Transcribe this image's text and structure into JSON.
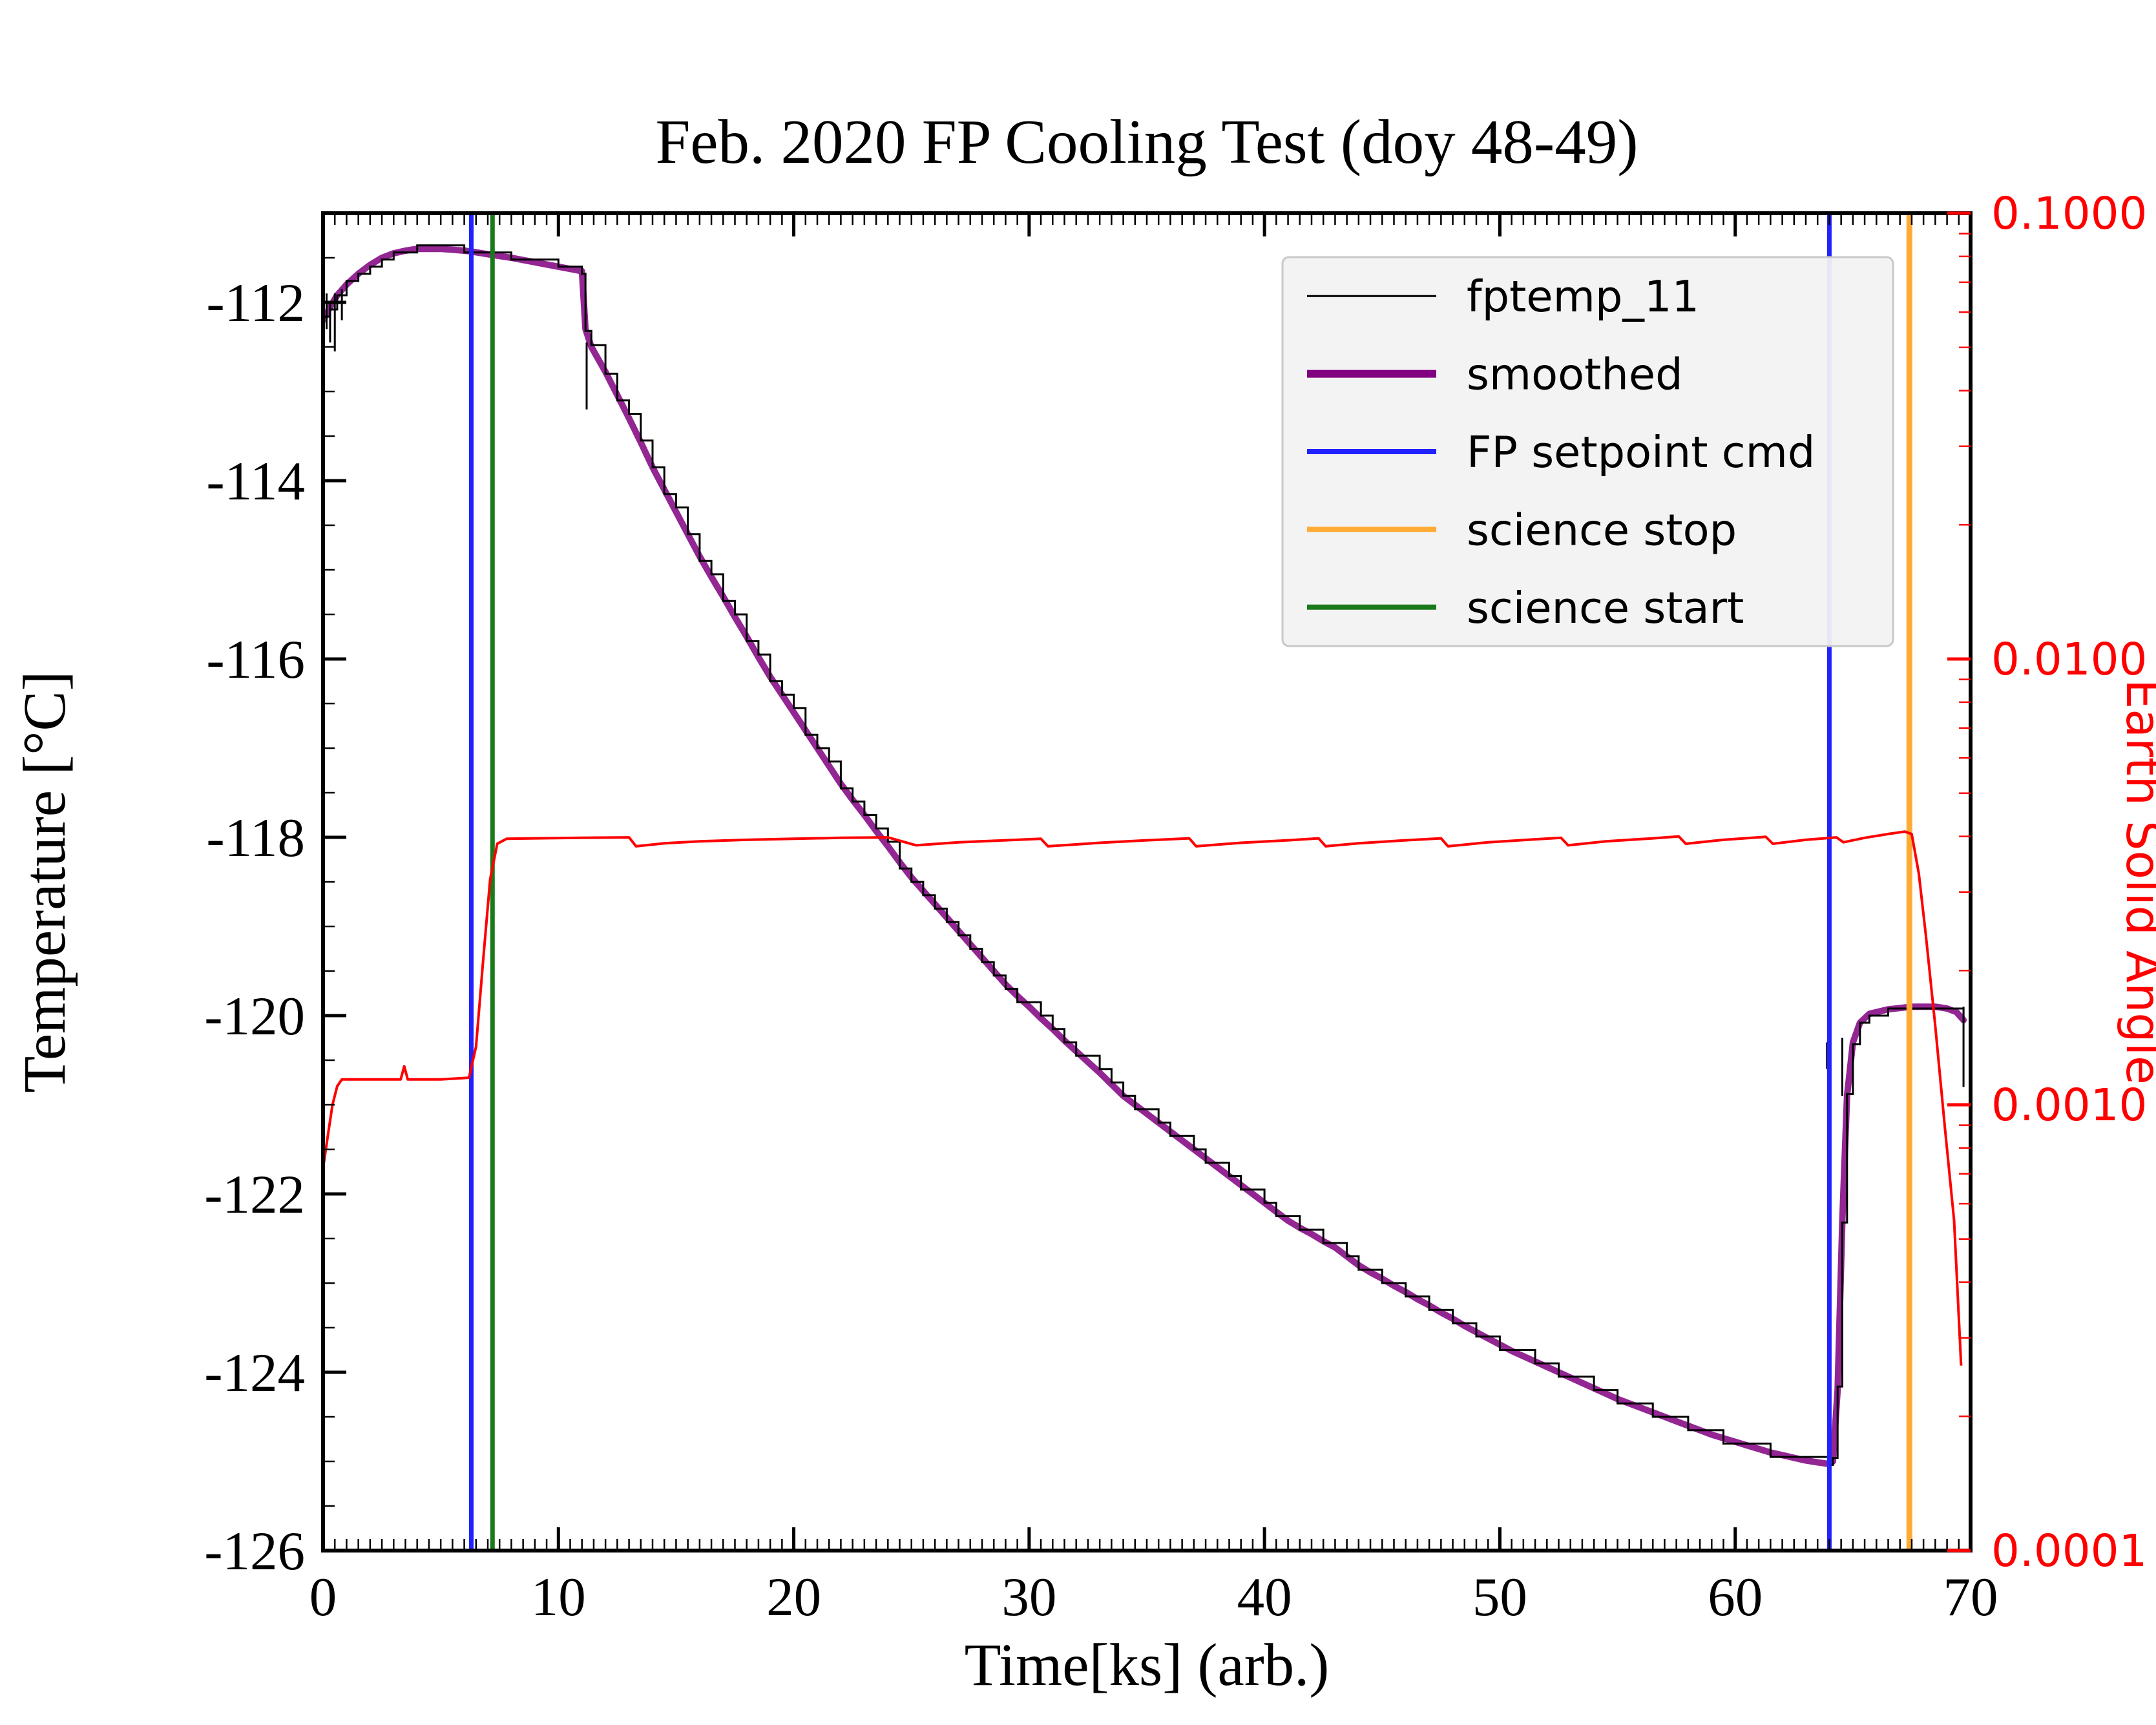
{
  "figure": {
    "background": "#ffffff"
  },
  "chart_data": {
    "type": "line",
    "title": "Feb. 2020 FP Cooling Test (doy 48-49)",
    "xlabel": "Time[ks] (arb.)",
    "ylabel_left": "Temperature [°C]",
    "ylabel_right": "Earth Solid Angle",
    "xlim": [
      0,
      70
    ],
    "ylim_left": [
      -126,
      -111
    ],
    "ylim_right": [
      0.0001,
      0.1
    ],
    "right_axis_scale": "log",
    "grid": false,
    "x_major_ticks": [
      0,
      10,
      20,
      30,
      40,
      50,
      60,
      70
    ],
    "x_minor_step": 0.5,
    "y_left_major_ticks": [
      -126,
      -124,
      -122,
      -120,
      -118,
      -116,
      -114,
      -112
    ],
    "y_left_minor_step": 0.5,
    "y_right_tick_values": [
      0.1,
      0.01,
      0.001,
      0.0001
    ],
    "y_right_tick_labels": [
      "0.1000",
      "0.0100",
      "0.0010",
      "0.0001"
    ],
    "colors": {
      "fptemp": "#000000",
      "smoothed": "#800080",
      "setpoint_blue": "#2222ff",
      "science_stop_orange": "#ffaa33",
      "science_start_green": "#1a7a1a",
      "solid_angle_red": "#ff0000",
      "legend_bg": "#f2f2f2",
      "legend_border": "#c8c8c8"
    },
    "legend": {
      "position": "upper right",
      "bg": "#f2f2f2",
      "border": "#c8c8c8",
      "entries": [
        {
          "label": "fptemp_11",
          "color": "#000000",
          "line_width": 3
        },
        {
          "label": "smoothed",
          "color": "#800080",
          "line_width": 12
        },
        {
          "label": "FP setpoint cmd",
          "color": "#2222ff",
          "line_width": 8
        },
        {
          "label": "science stop",
          "color": "#ffaa33",
          "line_width": 8
        },
        {
          "label": "science start",
          "color": "#1a7a1a",
          "line_width": 8
        }
      ]
    },
    "vlines": [
      {
        "name": "FP setpoint cmd",
        "color": "#2222ff",
        "width": 7,
        "x": [
          6.3,
          64.0
        ]
      },
      {
        "name": "science start",
        "color": "#1a7a1a",
        "width": 7,
        "x": [
          7.2
        ]
      },
      {
        "name": "science stop",
        "color": "#ffaa33",
        "width": 9,
        "x": [
          67.4
        ]
      }
    ],
    "series": [
      {
        "name": "smoothed",
        "axis": "left",
        "color": "#800080",
        "width": 10,
        "opacity": 0.85,
        "points": [
          [
            0,
            -112.2
          ],
          [
            0.3,
            -112.05
          ],
          [
            0.6,
            -111.92
          ],
          [
            1,
            -111.8
          ],
          [
            1.5,
            -111.68
          ],
          [
            2,
            -111.58
          ],
          [
            2.5,
            -111.5
          ],
          [
            3,
            -111.45
          ],
          [
            3.5,
            -111.42
          ],
          [
            4,
            -111.4
          ],
          [
            5,
            -111.4
          ],
          [
            6,
            -111.42
          ],
          [
            6.3,
            -111.43
          ],
          [
            7,
            -111.46
          ],
          [
            8,
            -111.5
          ],
          [
            9,
            -111.55
          ],
          [
            10,
            -111.6
          ],
          [
            11,
            -111.65
          ],
          [
            11.15,
            -112.3
          ],
          [
            11.4,
            -112.5
          ],
          [
            12,
            -112.78
          ],
          [
            12.5,
            -113.04
          ],
          [
            13,
            -113.3
          ],
          [
            13.5,
            -113.57
          ],
          [
            14,
            -113.85
          ],
          [
            14.5,
            -114.1
          ],
          [
            15,
            -114.35
          ],
          [
            15.5,
            -114.6
          ],
          [
            16,
            -114.85
          ],
          [
            16.5,
            -115.08
          ],
          [
            17,
            -115.3
          ],
          [
            17.5,
            -115.53
          ],
          [
            18,
            -115.75
          ],
          [
            18.5,
            -115.98
          ],
          [
            19,
            -116.2
          ],
          [
            19.5,
            -116.4
          ],
          [
            20,
            -116.6
          ],
          [
            20.5,
            -116.8
          ],
          [
            21,
            -117.0
          ],
          [
            21.5,
            -117.2
          ],
          [
            22,
            -117.4
          ],
          [
            22.5,
            -117.58
          ],
          [
            23,
            -117.75
          ],
          [
            23.5,
            -117.93
          ],
          [
            24,
            -118.1
          ],
          [
            24.5,
            -118.28
          ],
          [
            25,
            -118.45
          ],
          [
            25.5,
            -118.6
          ],
          [
            26,
            -118.75
          ],
          [
            26.5,
            -118.9
          ],
          [
            27,
            -119.05
          ],
          [
            27.5,
            -119.2
          ],
          [
            28,
            -119.35
          ],
          [
            28.5,
            -119.5
          ],
          [
            29,
            -119.65
          ],
          [
            29.5,
            -119.78
          ],
          [
            30,
            -119.9
          ],
          [
            30.5,
            -120.03
          ],
          [
            31,
            -120.15
          ],
          [
            31.5,
            -120.28
          ],
          [
            32,
            -120.4
          ],
          [
            32.5,
            -120.52
          ],
          [
            33,
            -120.64
          ],
          [
            33.5,
            -120.77
          ],
          [
            34,
            -120.9
          ],
          [
            34.5,
            -121.0
          ],
          [
            35,
            -121.1
          ],
          [
            35.5,
            -121.2
          ],
          [
            36,
            -121.3
          ],
          [
            36.5,
            -121.4
          ],
          [
            37,
            -121.5
          ],
          [
            37.5,
            -121.6
          ],
          [
            38,
            -121.7
          ],
          [
            38.5,
            -121.8
          ],
          [
            39,
            -121.9
          ],
          [
            39.5,
            -122.0
          ],
          [
            40,
            -122.1
          ],
          [
            40.5,
            -122.2
          ],
          [
            41,
            -122.3
          ],
          [
            41.5,
            -122.38
          ],
          [
            42,
            -122.45
          ],
          [
            42.5,
            -122.53
          ],
          [
            43,
            -122.6
          ],
          [
            43.5,
            -122.7
          ],
          [
            44,
            -122.8
          ],
          [
            44.5,
            -122.88
          ],
          [
            45,
            -122.95
          ],
          [
            45.5,
            -123.03
          ],
          [
            46,
            -123.1
          ],
          [
            46.5,
            -123.18
          ],
          [
            47,
            -123.25
          ],
          [
            47.5,
            -123.33
          ],
          [
            48,
            -123.4
          ],
          [
            48.5,
            -123.48
          ],
          [
            49,
            -123.55
          ],
          [
            49.5,
            -123.62
          ],
          [
            50,
            -123.69
          ],
          [
            50.5,
            -123.76
          ],
          [
            51,
            -123.82
          ],
          [
            51.5,
            -123.88
          ],
          [
            52,
            -123.94
          ],
          [
            52.5,
            -124.0
          ],
          [
            53,
            -124.06
          ],
          [
            53.5,
            -124.12
          ],
          [
            54,
            -124.18
          ],
          [
            54.5,
            -124.24
          ],
          [
            55,
            -124.3
          ],
          [
            55.5,
            -124.35
          ],
          [
            56,
            -124.4
          ],
          [
            56.5,
            -124.45
          ],
          [
            57,
            -124.5
          ],
          [
            57.5,
            -124.55
          ],
          [
            58,
            -124.6
          ],
          [
            58.5,
            -124.65
          ],
          [
            59,
            -124.7
          ],
          [
            59.5,
            -124.74
          ],
          [
            60,
            -124.78
          ],
          [
            60.5,
            -124.82
          ],
          [
            61,
            -124.86
          ],
          [
            61.5,
            -124.9
          ],
          [
            62,
            -124.93
          ],
          [
            62.5,
            -124.96
          ],
          [
            63,
            -124.99
          ],
          [
            63.5,
            -125.01
          ],
          [
            64,
            -125.03
          ],
          [
            64.15,
            -125.0
          ],
          [
            64.35,
            -124.2
          ],
          [
            64.55,
            -122.3
          ],
          [
            64.75,
            -120.9
          ],
          [
            65,
            -120.3
          ],
          [
            65.3,
            -120.08
          ],
          [
            65.7,
            -119.98
          ],
          [
            66.5,
            -119.93
          ],
          [
            67.5,
            -119.9
          ],
          [
            68.5,
            -119.9
          ],
          [
            69,
            -119.92
          ],
          [
            69.4,
            -119.96
          ],
          [
            69.7,
            -120.05
          ]
        ]
      },
      {
        "name": "fptemp_11",
        "axis": "left",
        "color": "#000000",
        "width": 3,
        "derived_from": "smoothed",
        "quantize_steps": {
          "descent": 0.15,
          "other": 0.08
        },
        "spikes": [
          [
            0.15,
            -111.9,
            -112.3
          ],
          [
            0.3,
            -112.0,
            -112.45
          ],
          [
            0.5,
            -111.9,
            -112.55
          ],
          [
            0.8,
            -111.85,
            -112.2
          ],
          [
            11.2,
            -112.45,
            -113.2
          ],
          [
            63.9,
            -120.3,
            -120.6
          ],
          [
            64.55,
            -120.25,
            -120.9
          ],
          [
            69.7,
            -119.9,
            -120.8
          ]
        ]
      },
      {
        "name": "earth_solid_angle",
        "axis": "right",
        "color": "#ff0000",
        "width": 4,
        "points": [
          [
            0,
            0.00072
          ],
          [
            0.2,
            0.00085
          ],
          [
            0.4,
            0.001
          ],
          [
            0.6,
            0.0011
          ],
          [
            0.8,
            0.00114
          ],
          [
            2,
            0.00114
          ],
          [
            3.3,
            0.00114
          ],
          [
            3.45,
            0.00122
          ],
          [
            3.6,
            0.00114
          ],
          [
            5,
            0.00114
          ],
          [
            6.2,
            0.00115
          ],
          [
            6.5,
            0.00135
          ],
          [
            6.8,
            0.0021
          ],
          [
            7.1,
            0.0032
          ],
          [
            7.4,
            0.00385
          ],
          [
            7.8,
            0.00395
          ],
          [
            9,
            0.00396
          ],
          [
            11,
            0.00397
          ],
          [
            13,
            0.00398
          ],
          [
            13.3,
            0.0038
          ],
          [
            14.5,
            0.00386
          ],
          [
            16,
            0.0039
          ],
          [
            18,
            0.00393
          ],
          [
            20,
            0.00395
          ],
          [
            22,
            0.00397
          ],
          [
            24,
            0.00398
          ],
          [
            25.2,
            0.00382
          ],
          [
            27,
            0.00388
          ],
          [
            29,
            0.00392
          ],
          [
            30.5,
            0.00395
          ],
          [
            30.8,
            0.0038
          ],
          [
            33,
            0.00387
          ],
          [
            35,
            0.00392
          ],
          [
            36.8,
            0.00396
          ],
          [
            37.1,
            0.0038
          ],
          [
            39,
            0.00387
          ],
          [
            41,
            0.00392
          ],
          [
            42.3,
            0.00396
          ],
          [
            42.6,
            0.0038
          ],
          [
            44,
            0.00386
          ],
          [
            46,
            0.00392
          ],
          [
            47.5,
            0.00396
          ],
          [
            47.8,
            0.0038
          ],
          [
            49.5,
            0.00388
          ],
          [
            51.5,
            0.00394
          ],
          [
            52.6,
            0.00397
          ],
          [
            52.9,
            0.00382
          ],
          [
            54.5,
            0.0039
          ],
          [
            56.5,
            0.00396
          ],
          [
            57.6,
            0.004
          ],
          [
            57.9,
            0.00385
          ],
          [
            59.5,
            0.00393
          ],
          [
            61.3,
            0.00399
          ],
          [
            61.6,
            0.00385
          ],
          [
            63,
            0.00393
          ],
          [
            64.3,
            0.00398
          ],
          [
            64.6,
            0.00388
          ],
          [
            65.5,
            0.00397
          ],
          [
            66.5,
            0.00405
          ],
          [
            67.2,
            0.0041
          ],
          [
            67.5,
            0.00405
          ],
          [
            67.8,
            0.0033
          ],
          [
            68.1,
            0.0024
          ],
          [
            68.5,
            0.0015
          ],
          [
            68.9,
            0.0009
          ],
          [
            69.3,
            0.00055
          ],
          [
            69.6,
            0.00026
          ]
        ]
      }
    ]
  }
}
